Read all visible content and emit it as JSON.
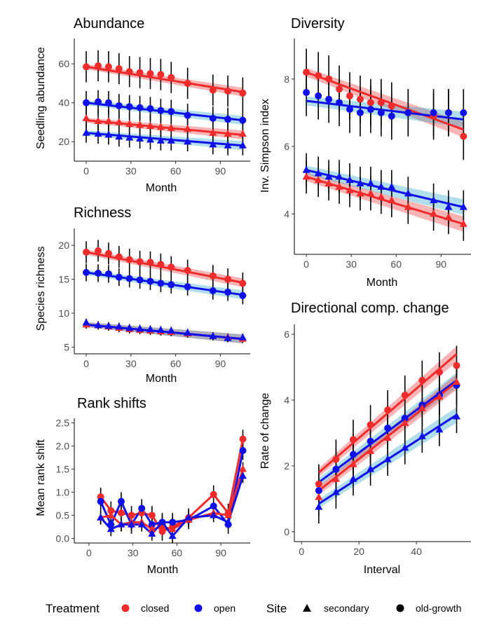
{
  "colors": {
    "closed": "#ef2b2b",
    "open": "#1010e8",
    "errorbar": "#000000"
  },
  "legend": {
    "treatment_title": "Treatment",
    "treatment_items": [
      {
        "label": "closed",
        "key": "closed"
      },
      {
        "label": "open",
        "key": "open"
      }
    ],
    "site_title": "Site",
    "site_items": [
      {
        "label": "secondary",
        "shape": "triangle"
      },
      {
        "label": "old-growth",
        "shape": "circle"
      }
    ]
  },
  "chart_data": [
    {
      "id": "abundance",
      "type": "scatter",
      "title": "Abundance",
      "xlabel": "Month",
      "ylabel": "Seedling abundance",
      "xlim": [
        -8,
        110
      ],
      "ylim": [
        10,
        73
      ],
      "xticks": [
        0,
        30,
        60,
        90
      ],
      "yticks": [
        20,
        40,
        60
      ],
      "x": [
        0,
        8,
        15,
        22,
        29,
        36,
        43,
        50,
        57,
        68,
        85,
        95,
        105
      ],
      "series": [
        {
          "treatment": "closed",
          "site": "old-growth",
          "fit": [
            58.5,
            45.5
          ],
          "y": [
            58.5,
            59,
            58.5,
            57.5,
            56,
            55.5,
            55,
            54.5,
            53,
            50,
            46.5,
            46,
            45
          ],
          "err": 8
        },
        {
          "treatment": "open",
          "site": "old-growth",
          "fit": [
            40,
            31
          ],
          "y": [
            40,
            40.5,
            40,
            38.5,
            38,
            37.5,
            37,
            36,
            35.5,
            33.5,
            32,
            31.5,
            31
          ],
          "err": 6
        },
        {
          "treatment": "closed",
          "site": "secondary",
          "fit": [
            31,
            23.5
          ],
          "y": [
            32,
            30.5,
            30.5,
            30,
            29,
            28.5,
            28,
            27.5,
            27,
            26.5,
            24.5,
            24,
            24
          ],
          "err": 6
        },
        {
          "treatment": "open",
          "site": "secondary",
          "fit": [
            24.5,
            18
          ],
          "y": [
            24.5,
            24,
            23.5,
            22.5,
            22,
            21.5,
            21,
            20.5,
            20.5,
            20,
            18.5,
            18,
            18
          ],
          "err": 5
        }
      ]
    },
    {
      "id": "richness",
      "type": "scatter",
      "title": "Richness",
      "xlabel": "Month",
      "ylabel": "Species richness",
      "xlim": [
        -8,
        110
      ],
      "ylim": [
        4,
        22.5
      ],
      "xticks": [
        0,
        30,
        60,
        90
      ],
      "yticks": [
        5,
        10,
        15,
        20
      ],
      "x": [
        0,
        8,
        15,
        22,
        29,
        36,
        43,
        50,
        57,
        68,
        85,
        95,
        105
      ],
      "series": [
        {
          "treatment": "closed",
          "site": "old-growth",
          "fit": [
            19,
            14.5
          ],
          "y": [
            19,
            19.2,
            18.8,
            18.3,
            17.9,
            17.6,
            17.5,
            17.2,
            16.8,
            16.3,
            15.5,
            15,
            14.4
          ],
          "err": 1.6
        },
        {
          "treatment": "open",
          "site": "old-growth",
          "fit": [
            16,
            12.7
          ],
          "y": [
            16,
            15.9,
            15.8,
            15.3,
            15.1,
            14.9,
            14.7,
            14.4,
            14.2,
            13.9,
            13.3,
            13.1,
            12.6
          ],
          "err": 1.3
        },
        {
          "treatment": "closed",
          "site": "secondary",
          "fit": [
            8.3,
            6.2
          ],
          "y": [
            8.3,
            8.2,
            8,
            7.8,
            7.6,
            7.5,
            7.4,
            7.3,
            7.2,
            7,
            6.6,
            6.4,
            6.2
          ],
          "err": 0.6
        },
        {
          "treatment": "open",
          "site": "secondary",
          "fit": [
            8.3,
            6.2
          ],
          "y": [
            8.6,
            8.2,
            8.1,
            8,
            7.8,
            7.7,
            7.6,
            7.5,
            7.4,
            7.1,
            6.6,
            6.3,
            6.4
          ],
          "err": 0.6
        }
      ]
    },
    {
      "id": "rankshifts",
      "type": "line",
      "title": "Rank shifts",
      "xlabel": "Month",
      "ylabel": "Mean rank shift",
      "xlim": [
        -10,
        110
      ],
      "ylim": [
        -0.1,
        2.6
      ],
      "xticks": [
        0,
        30,
        60,
        90
      ],
      "yticks": [
        0.0,
        0.5,
        1.0,
        1.5,
        2.0,
        2.5
      ],
      "x": [
        8,
        15,
        22,
        29,
        36,
        43,
        50,
        57,
        68,
        85,
        95,
        105
      ],
      "series": [
        {
          "treatment": "closed",
          "site": "old-growth",
          "y": [
            0.9,
            0.6,
            0.55,
            0.5,
            0.55,
            0.5,
            0.15,
            0.25,
            0.45,
            0.95,
            0.55,
            2.15
          ],
          "err": 0.2
        },
        {
          "treatment": "open",
          "site": "old-growth",
          "y": [
            0.8,
            0.3,
            0.8,
            0.3,
            0.65,
            0.3,
            0.35,
            0.35,
            0.4,
            0.7,
            0.3,
            1.9
          ],
          "err": 0.2
        },
        {
          "treatment": "closed",
          "site": "secondary",
          "y": [
            0.45,
            0.5,
            0.3,
            0.35,
            0.35,
            0.2,
            0.25,
            0.2,
            0.4,
            0.55,
            0.5,
            1.5
          ],
          "err": 0.15
        },
        {
          "treatment": "open",
          "site": "secondary",
          "y": [
            0.45,
            0.2,
            0.3,
            0.3,
            0.3,
            0.1,
            0.35,
            0.05,
            0.45,
            0.5,
            0.35,
            1.35
          ],
          "err": 0.15
        }
      ]
    },
    {
      "id": "diversity",
      "type": "scatter",
      "title": "Diversity",
      "xlabel": "Month",
      "ylabel": "Inv. Simpson index",
      "xlim": [
        -8,
        110
      ],
      "ylim": [
        2.8,
        9.2
      ],
      "xticks": [
        0,
        30,
        60,
        90
      ],
      "yticks": [
        4,
        6,
        8
      ],
      "x": [
        0,
        8,
        15,
        22,
        29,
        36,
        43,
        50,
        57,
        68,
        85,
        95,
        105
      ],
      "series": [
        {
          "treatment": "closed",
          "site": "old-growth",
          "fit": [
            8.2,
            6.5
          ],
          "y": [
            8.2,
            8.1,
            8,
            7.7,
            7.5,
            7.4,
            7.3,
            7.3,
            7.2,
            7,
            6.9,
            7,
            6.3
          ],
          "err": 0.7
        },
        {
          "treatment": "open",
          "site": "old-growth",
          "fit": [
            7.35,
            6.8
          ],
          "y": [
            7.6,
            7.5,
            7.4,
            7.3,
            7.1,
            7,
            7.1,
            7,
            6.9,
            7,
            7,
            7,
            7
          ],
          "err": 0.7
        },
        {
          "treatment": "closed",
          "site": "secondary",
          "fit": [
            5.1,
            3.7
          ],
          "y": [
            5.1,
            5,
            4.9,
            4.8,
            4.7,
            4.6,
            4.6,
            4.5,
            4.4,
            4.2,
            4,
            3.9,
            3.7
          ],
          "err": 0.5
        },
        {
          "treatment": "open",
          "site": "secondary",
          "fit": [
            5.3,
            4.2
          ],
          "y": [
            5.3,
            5.2,
            5.1,
            5.1,
            5,
            4.9,
            4.9,
            4.8,
            4.8,
            4.6,
            4.4,
            4.2,
            4.2
          ],
          "err": 0.5
        }
      ]
    },
    {
      "id": "directional",
      "type": "scatter",
      "title": "Directional comp. change",
      "xlabel": "Interval",
      "ylabel": "Rate of change",
      "xlim": [
        -2.5,
        59
      ],
      "ylim": [
        -0.3,
        6.3
      ],
      "xticks": [
        0,
        20,
        40
      ],
      "yticks": [
        0,
        2,
        4,
        6
      ],
      "x": [
        6,
        12,
        18,
        24,
        30,
        36,
        42,
        48,
        54
      ],
      "series": [
        {
          "treatment": "closed",
          "site": "old-growth",
          "fit": [
            1.8,
            5.4
          ],
          "y": [
            1.45,
            2.2,
            2.8,
            3.25,
            3.7,
            4.15,
            4.6,
            4.85,
            5.05
          ],
          "err": 0.6
        },
        {
          "treatment": "open",
          "site": "old-growth",
          "fit": [
            1.5,
            4.6
          ],
          "y": [
            1.25,
            1.9,
            2.35,
            2.75,
            3.15,
            3.45,
            3.85,
            4.15,
            4.45
          ],
          "err": 0.6
        },
        {
          "treatment": "closed",
          "site": "secondary",
          "fit": [
            1.25,
            4.55
          ],
          "y": [
            1.05,
            1.6,
            2.05,
            2.45,
            2.85,
            3.3,
            3.75,
            4.1,
            4.55
          ],
          "err": 0.55
        },
        {
          "treatment": "open",
          "site": "secondary",
          "fit": [
            0.85,
            3.55
          ],
          "y": [
            0.75,
            1.2,
            1.6,
            1.9,
            2.2,
            2.55,
            2.9,
            3.1,
            3.5
          ],
          "err": 0.5
        }
      ]
    }
  ]
}
